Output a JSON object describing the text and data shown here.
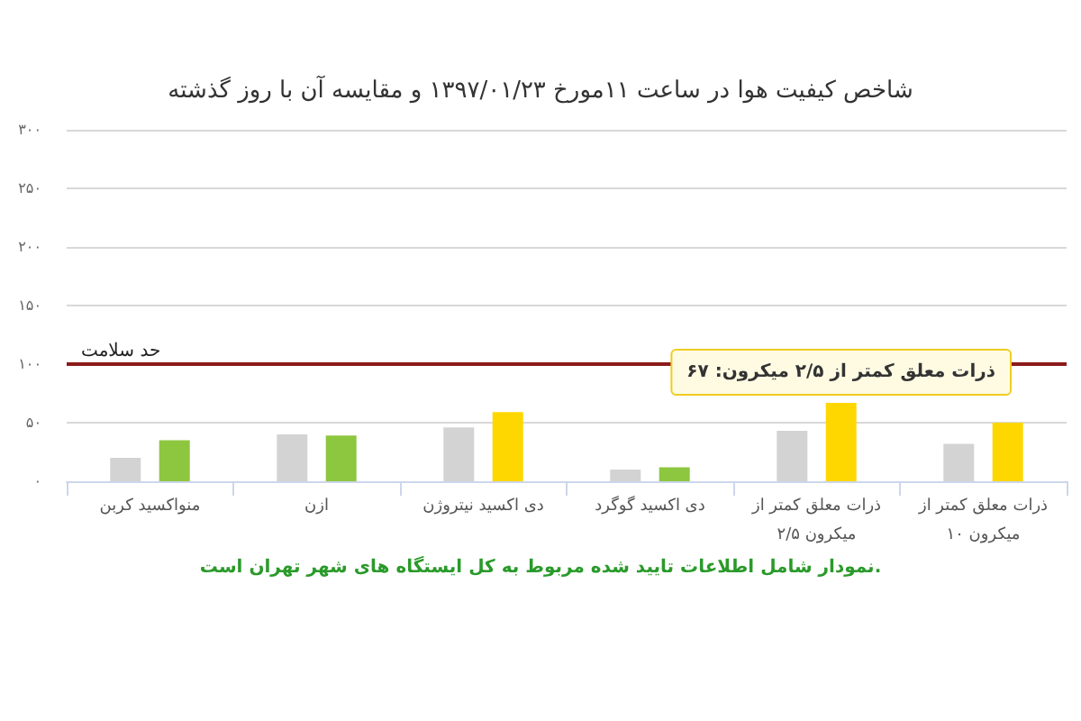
{
  "chart_data": {
    "type": "bar",
    "title": "شاخص کیفیت هوا در ساعت ۱۱مورخ ۱۳۹۷/۰۱/۲۳ و مقایسه آن با روز گذشته",
    "categories": [
      "منواکسید کربن",
      "ازن",
      "دی اکسید نیتروژن",
      "دی اکسید گوگرد",
      "ذرات معلق کمتر از ۲/۵ میکرون",
      "ذرات معلق کمتر از ۱۰ میکرون"
    ],
    "series": [
      {
        "color": "#d3d3d3",
        "values": [
          20,
          40,
          46,
          10,
          43,
          32
        ]
      },
      {
        "color": "#8dc63f",
        "colors": [
          "#8dc63f",
          "#8dc63f",
          "#ffd700",
          "#8dc63f",
          "#ffd700",
          "#ffd700"
        ],
        "values": [
          35,
          39,
          59,
          12,
          67,
          50
        ],
        "value_labels": [
          null,
          null,
          null,
          null,
          "ذرات معلق کمتر از ۲/۵ میکرون: ۶۷",
          null
        ]
      }
    ],
    "ylim": [
      0,
      300
    ],
    "yticks": [
      {
        "value": 0,
        "label": "۰"
      },
      {
        "value": 50,
        "label": "۵۰"
      },
      {
        "value": 100,
        "label": "۱۰۰"
      },
      {
        "value": 150,
        "label": "۱۵۰"
      },
      {
        "value": 200,
        "label": "۲۰۰"
      },
      {
        "value": 250,
        "label": "۲۵۰"
      },
      {
        "value": 300,
        "label": "۳۰۰"
      }
    ],
    "grid": "y",
    "ref_lines": [
      {
        "axis": "y",
        "value": 100,
        "label": "حد سلامت",
        "color": "#8b1a1a"
      }
    ],
    "annotations": [
      "نمودار شامل اطلاعات تایید شده مربوط به کل ایستگاه های شهر تهران است."
    ]
  }
}
